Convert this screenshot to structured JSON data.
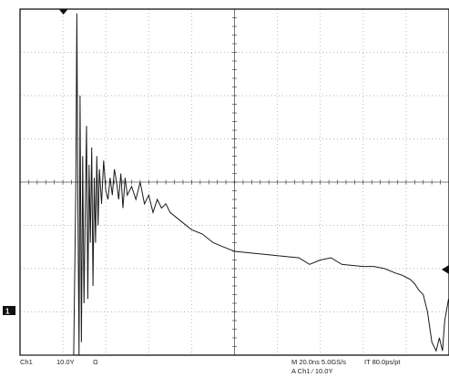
{
  "colors": {
    "trace": "#1a1a1a",
    "grid": "#b5b5b5",
    "frame": "#000000",
    "marker": "#111111",
    "background": "#ffffff"
  },
  "status": {
    "channel": "Ch1",
    "volts_per_div": "10.0Y",
    "coupling": "Ω",
    "timebase": "M 20.0ns 5.0GS/s",
    "interp": "IT 80.0ps/pt",
    "trigger": "A Ch1 ⁄ 10.0Y"
  },
  "channel_marker": "1",
  "chart_data": {
    "type": "line",
    "grid": {
      "divisions_x": 10,
      "divisions_y": 8,
      "visible": true
    },
    "x_unit": "ns per division",
    "x_per_div": 20.0,
    "y_unit": "V per division",
    "y_per_div": 10.0,
    "xlim": [
      0,
      200
    ],
    "ylim": [
      -2.8,
      5.2
    ],
    "series": [
      {
        "x": [
          0,
          10,
          20,
          24,
          25,
          26,
          26.5,
          27,
          27.5,
          28,
          28.6,
          29.2,
          29.8,
          30.4,
          31,
          31.6,
          32.2,
          32.8,
          33.4,
          34,
          34.6,
          35.2,
          35.8,
          36.4,
          37,
          38,
          39,
          40,
          41,
          42,
          43,
          44,
          45,
          46,
          47,
          48,
          49,
          50,
          52,
          54,
          56,
          58,
          60,
          62,
          64,
          66,
          68,
          70,
          75,
          80,
          85,
          90,
          95,
          100,
          110,
          120,
          130,
          135,
          140,
          145,
          150,
          160,
          165,
          170,
          175,
          178,
          180,
          182,
          184,
          186,
          188,
          190,
          192,
          194,
          195.5,
          197,
          198,
          200
        ],
        "y": [
          -2.9,
          -2.9,
          -2.9,
          -2.9,
          -2.8,
          1.0,
          5.1,
          0.5,
          -3.2,
          3.2,
          -2.5,
          1.8,
          -1.6,
          0.5,
          2.5,
          -1.5,
          1.6,
          -0.2,
          2.0,
          -1.2,
          1.3,
          -0.2,
          1.8,
          0.2,
          1.5,
          0.7,
          1.7,
          1.0,
          0.8,
          1.3,
          0.9,
          1.5,
          1.2,
          0.8,
          1.4,
          0.6,
          1.3,
          0.9,
          1.1,
          0.8,
          1.2,
          0.7,
          0.9,
          0.5,
          0.8,
          0.6,
          0.7,
          0.5,
          0.3,
          0.1,
          0.0,
          -0.2,
          -0.3,
          -0.4,
          -0.45,
          -0.5,
          -0.55,
          -0.7,
          -0.6,
          -0.55,
          -0.7,
          -0.75,
          -0.75,
          -0.8,
          -0.9,
          -0.95,
          -1.0,
          -1.05,
          -1.15,
          -1.3,
          -1.4,
          -1.8,
          -2.5,
          -2.7,
          -2.4,
          -2.7,
          -2.0,
          -1.5
        ]
      }
    ]
  }
}
